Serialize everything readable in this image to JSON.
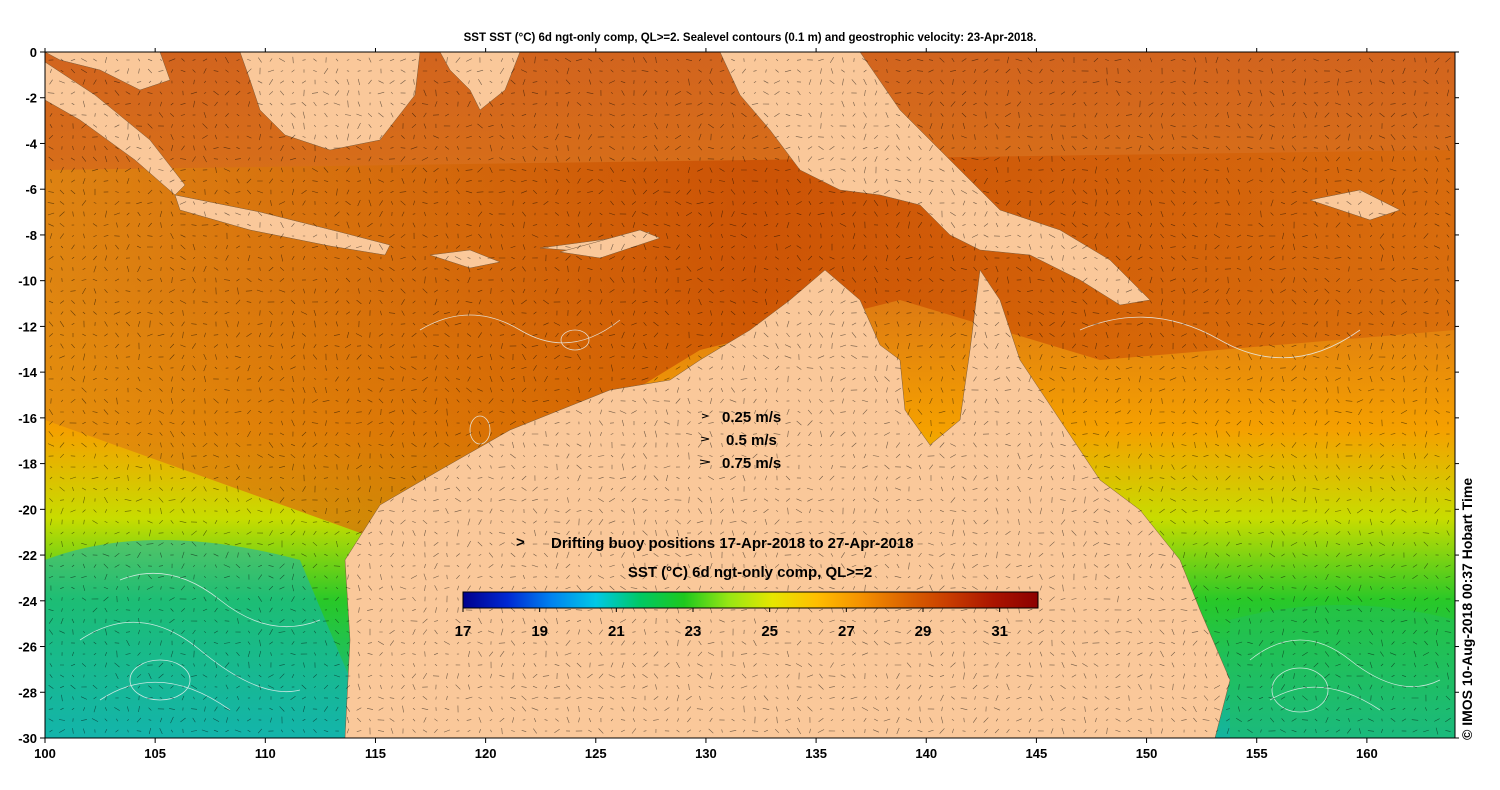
{
  "title": "SST SST (°C) 6d ngt-only comp, QL>=2. Sealevel contours (0.1 m) and geostrophic velocity: 23-Apr-2018.",
  "map": {
    "lon_range": [
      100,
      164
    ],
    "lat_range": [
      -30,
      0
    ],
    "x_ticks": [
      100,
      105,
      110,
      115,
      120,
      125,
      130,
      135,
      140,
      145,
      150,
      155,
      160
    ],
    "y_ticks": [
      0,
      -2,
      -4,
      -6,
      -8,
      -10,
      -12,
      -14,
      -16,
      -18,
      -20,
      -22,
      -24,
      -26,
      -28,
      -30
    ],
    "land_color": "#fac89a",
    "contour_color": "#e8f0f0",
    "arrow_color": "#000000"
  },
  "velocity_legend": [
    {
      "label": "0.25 m/s",
      "speed": 0.25
    },
    {
      "label": "0.5 m/s",
      "speed": 0.5
    },
    {
      "label": "0.75 m/s",
      "speed": 0.75
    }
  ],
  "buoy_legend": {
    "symbol": ">",
    "symbol_color": "#ff00ff",
    "label": "Drifting buoy positions 17-Apr-2018 to 27-Apr-2018"
  },
  "colorbar": {
    "title": "SST (°C) 6d ngt-only comp, QL>=2",
    "range": [
      17,
      32
    ],
    "tick_labels": [
      "17",
      "19",
      "21",
      "23",
      "25",
      "27",
      "29",
      "31"
    ],
    "colors": [
      "#00008c",
      "#0028d2",
      "#0082f0",
      "#00c8e6",
      "#00c864",
      "#1ec81e",
      "#96e614",
      "#e6e600",
      "#ffbe00",
      "#f59100",
      "#dc6400",
      "#c83c00",
      "#aa1400",
      "#8c0000"
    ]
  },
  "credit": "© IMOS 10-Aug-2018 00:37 Hobart Time"
}
